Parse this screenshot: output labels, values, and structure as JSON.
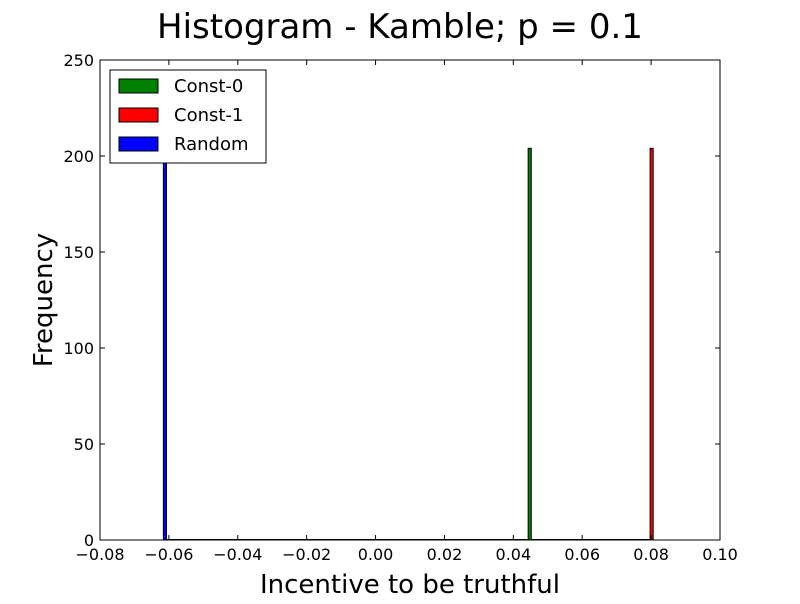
{
  "chart_data": {
    "type": "bar",
    "title": "Histogram - Kamble;  p = 0.1",
    "xlabel": "Incentive to be truthful",
    "ylabel": "Frequency",
    "xlim": [
      -0.08,
      0.1
    ],
    "ylim": [
      0,
      250
    ],
    "xticks": [
      -0.08,
      -0.06,
      -0.04,
      -0.02,
      0.0,
      0.02,
      0.04,
      0.06,
      0.08,
      0.1
    ],
    "xtick_labels": [
      "−0.08",
      "−0.06",
      "−0.04",
      "−0.02",
      "0.00",
      "0.02",
      "0.04",
      "0.06",
      "0.08",
      "0.10"
    ],
    "yticks": [
      0,
      50,
      100,
      150,
      200,
      250
    ],
    "ytick_labels": [
      "0",
      "50",
      "100",
      "150",
      "200",
      "250"
    ],
    "grid": false,
    "legend_position": "top-left",
    "series": [
      {
        "name": "Const-0",
        "color": "#008000",
        "bars": [
          {
            "x_start": 0.0443,
            "x_end": 0.0452,
            "count": 204
          }
        ]
      },
      {
        "name": "Const-1",
        "color": "#ff0000",
        "bars": [
          {
            "x_start": 0.0797,
            "x_end": 0.0806,
            "count": 204
          }
        ]
      },
      {
        "name": "Random",
        "color": "#0000ff",
        "bars": [
          {
            "x_start": -0.0616,
            "x_end": -0.0607,
            "count": 204
          }
        ]
      }
    ]
  }
}
